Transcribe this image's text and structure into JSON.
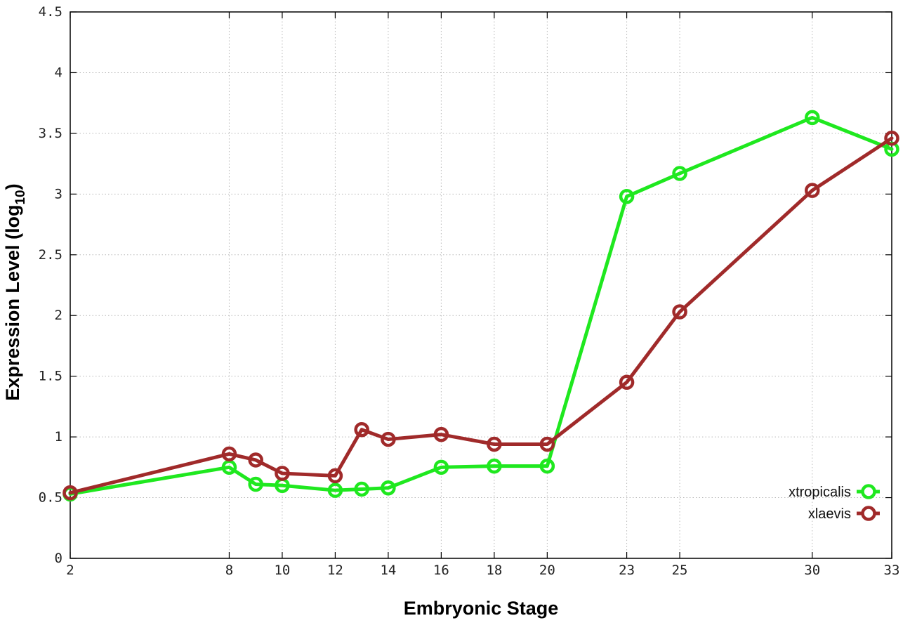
{
  "chart_data": {
    "type": "line",
    "xlabel": "Embryonic Stage",
    "ylabel": "Expression Level (log",
    "ylabel_subscript": "10",
    "ylabel_close": ")",
    "x": [
      2,
      8,
      9,
      10,
      12,
      13,
      14,
      16,
      18,
      20,
      23,
      25,
      30,
      33
    ],
    "x_tick_positions": [
      2,
      8,
      10,
      12,
      14,
      16,
      18,
      20,
      23,
      25,
      30,
      33
    ],
    "x_tick_labels": [
      "2",
      "8",
      "10",
      "12",
      "14",
      "16",
      "18",
      "20",
      "23",
      "25",
      "30",
      "33"
    ],
    "xlim": [
      2,
      33
    ],
    "ylim": [
      0,
      4.5
    ],
    "y_ticks": [
      0,
      0.5,
      1,
      1.5,
      2,
      2.5,
      3,
      3.5,
      4,
      4.5
    ],
    "y_tick_labels": [
      "0",
      "0.5",
      "1",
      "1.5",
      "2",
      "2.5",
      "3",
      "3.5",
      "4",
      "4.5"
    ],
    "grid": true,
    "legend_position": "bottom-right",
    "series": [
      {
        "name": "xtropicalis",
        "color": "#1fe81f",
        "values": [
          0.53,
          0.75,
          0.61,
          0.6,
          0.56,
          0.57,
          0.58,
          0.75,
          0.76,
          0.76,
          2.98,
          3.17,
          3.63,
          3.37
        ]
      },
      {
        "name": "xlaevis",
        "color": "#a02a2a",
        "values": [
          0.54,
          0.86,
          0.81,
          0.7,
          0.68,
          1.06,
          0.98,
          1.02,
          0.94,
          0.94,
          1.45,
          2.03,
          3.03,
          3.46
        ]
      }
    ]
  }
}
